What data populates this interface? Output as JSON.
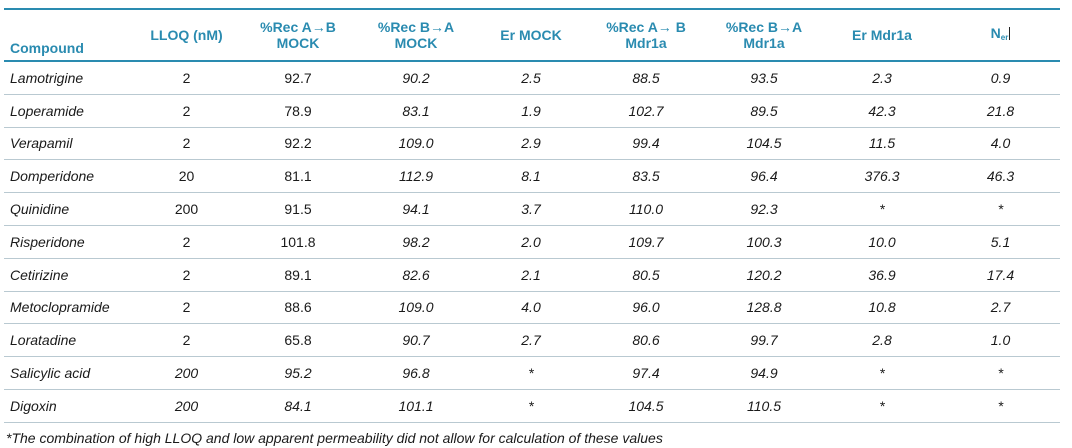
{
  "headers": {
    "compound": "Compound",
    "lloq": "LLOQ (nM)",
    "rec_ab_mock_1": "%Rec A→B",
    "rec_ab_mock_2": "MOCK",
    "rec_ba_mock_1": "%Rec B→A",
    "rec_ba_mock_2": "MOCK",
    "er_mock": "Er MOCK",
    "rec_ab_mdr_1": "%Rec A→ B",
    "rec_ab_mdr_2": "Mdr1a",
    "rec_ba_mdr_1": "%Rec B→A",
    "rec_ba_mdr_2": "Mdr1a",
    "er_mdr": "Er Mdr1a",
    "ner_main": "N",
    "ner_sub": "er"
  },
  "rows": [
    {
      "compound": "Lamotrigine",
      "lloq": "2",
      "rec_ab_mock": "92.7",
      "rec_ba_mock": "90.2",
      "er_mock": "2.5",
      "rec_ab_mdr": "88.5",
      "rec_ba_mdr": "93.5",
      "er_mdr": "2.3",
      "ner": "0.9"
    },
    {
      "compound": "Loperamide",
      "lloq": "2",
      "rec_ab_mock": "78.9",
      "rec_ba_mock": "83.1",
      "er_mock": "1.9",
      "rec_ab_mdr": "102.7",
      "rec_ba_mdr": "89.5",
      "er_mdr": "42.3",
      "ner": "21.8"
    },
    {
      "compound": "Verapamil",
      "lloq": "2",
      "rec_ab_mock": "92.2",
      "rec_ba_mock": "109.0",
      "er_mock": "2.9",
      "rec_ab_mdr": "99.4",
      "rec_ba_mdr": "104.5",
      "er_mdr": "11.5",
      "ner": "4.0"
    },
    {
      "compound": "Domperidone",
      "lloq": "20",
      "rec_ab_mock": "81.1",
      "rec_ba_mock": "112.9",
      "er_mock": "8.1",
      "rec_ab_mdr": "83.5",
      "rec_ba_mdr": "96.4",
      "er_mdr": "376.3",
      "ner": "46.3"
    },
    {
      "compound": "Quinidine",
      "lloq": "200",
      "rec_ab_mock": "91.5",
      "rec_ba_mock": "94.1",
      "er_mock": "3.7",
      "rec_ab_mdr": "110.0",
      "rec_ba_mdr": "92.3",
      "er_mdr": "*",
      "ner": "*"
    },
    {
      "compound": "Risperidone",
      "lloq": "2",
      "rec_ab_mock": "101.8",
      "rec_ba_mock": "98.2",
      "er_mock": "2.0",
      "rec_ab_mdr": "109.7",
      "rec_ba_mdr": "100.3",
      "er_mdr": "10.0",
      "ner": "5.1"
    },
    {
      "compound": "Cetirizine",
      "lloq": "2",
      "rec_ab_mock": "89.1",
      "rec_ba_mock": "82.6",
      "er_mock": "2.1",
      "rec_ab_mdr": "80.5",
      "rec_ba_mdr": "120.2",
      "er_mdr": "36.9",
      "ner": "17.4"
    },
    {
      "compound": "Metoclopramide",
      "lloq": "2",
      "rec_ab_mock": "88.6",
      "rec_ba_mock": "109.0",
      "er_mock": "4.0",
      "rec_ab_mdr": "96.0",
      "rec_ba_mdr": "128.8",
      "er_mdr": "10.8",
      "ner": "2.7"
    },
    {
      "compound": "Loratadine",
      "lloq": "2",
      "rec_ab_mock": "65.8",
      "rec_ba_mock": "90.7",
      "er_mock": "2.7",
      "rec_ab_mdr": "80.6",
      "rec_ba_mdr": "99.7",
      "er_mdr": "2.8",
      "ner": "1.0"
    },
    {
      "compound": "Salicylic acid",
      "lloq": "200",
      "rec_ab_mock": "95.2",
      "rec_ba_mock": "96.8",
      "er_mock": "*",
      "rec_ab_mdr": "97.4",
      "rec_ba_mdr": "94.9",
      "er_mdr": "*",
      "ner": "*"
    },
    {
      "compound": "Digoxin",
      "lloq": "200",
      "rec_ab_mock": "84.1",
      "rec_ba_mock": "101.1",
      "er_mock": "*",
      "rec_ab_mdr": "104.5",
      "rec_ba_mdr": "110.5",
      "er_mdr": "*",
      "ner": "*"
    }
  ],
  "footnote": "*The combination of high LLOQ and low apparent permeability did not allow for calculation of these values",
  "colors": {
    "accent": "#2a8bb0",
    "row_rule": "#b9c9d1"
  }
}
